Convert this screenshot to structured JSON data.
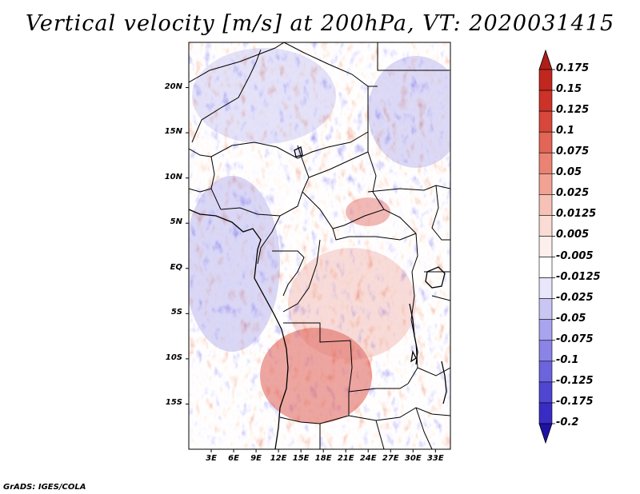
{
  "title": "Vertical velocity [m/s] at 200hPa, VT: 2020031415",
  "credit": "GrADS: IGES/COLA",
  "map": {
    "variable": "Vertical velocity",
    "units": "m/s",
    "level": "200hPa",
    "valid_time": "2020031415",
    "lon_range": [
      0,
      35
    ],
    "lat_range": [
      -20,
      25
    ],
    "y_ticks": [
      {
        "label": "20N",
        "lat": 20
      },
      {
        "label": "15N",
        "lat": 15
      },
      {
        "label": "10N",
        "lat": 10
      },
      {
        "label": "5N",
        "lat": 5
      },
      {
        "label": "EQ",
        "lat": 0
      },
      {
        "label": "5S",
        "lat": -5
      },
      {
        "label": "10S",
        "lat": -10
      },
      {
        "label": "15S",
        "lat": -15
      }
    ],
    "x_ticks": [
      {
        "label": "3E",
        "lon": 3
      },
      {
        "label": "6E",
        "lon": 6
      },
      {
        "label": "9E",
        "lon": 9
      },
      {
        "label": "12E",
        "lon": 12
      },
      {
        "label": "15E",
        "lon": 15
      },
      {
        "label": "18E",
        "lon": 18
      },
      {
        "label": "21E",
        "lon": 21
      },
      {
        "label": "24E",
        "lon": 24
      },
      {
        "label": "27E",
        "lon": 27
      },
      {
        "label": "30E",
        "lon": 30
      },
      {
        "label": "33E",
        "lon": 33
      }
    ]
  },
  "colorbar": {
    "levels": [
      {
        "label": "0.175",
        "color": "#c1261f"
      },
      {
        "label": "0.15",
        "color": "#cd3229"
      },
      {
        "label": "0.125",
        "color": "#d8473c"
      },
      {
        "label": "0.1",
        "color": "#e26556"
      },
      {
        "label": "0.075",
        "color": "#ea8373"
      },
      {
        "label": "0.05",
        "color": "#f1a293"
      },
      {
        "label": "0.025",
        "color": "#f6c1b6"
      },
      {
        "label": "0.0125",
        "color": "#fadcd4"
      },
      {
        "label": "0.005",
        "color": "#fdf0ec"
      },
      {
        "label": "-0.005",
        "color": "#ffffff"
      },
      {
        "label": "-0.0125",
        "color": "#e8e6fa"
      },
      {
        "label": "-0.025",
        "color": "#c9c6f4"
      },
      {
        "label": "-0.05",
        "color": "#a9a4ee"
      },
      {
        "label": "-0.075",
        "color": "#8a84e6"
      },
      {
        "label": "-0.1",
        "color": "#6b64dd"
      },
      {
        "label": "-0.125",
        "color": "#4f46d2"
      },
      {
        "label": "-0.175",
        "color": "#392cc5"
      },
      {
        "label": "-0.2",
        "color": "#2a1db3"
      }
    ],
    "top_arrow_color": "#b01e1a",
    "bottom_arrow_color": "#1e12a6"
  }
}
